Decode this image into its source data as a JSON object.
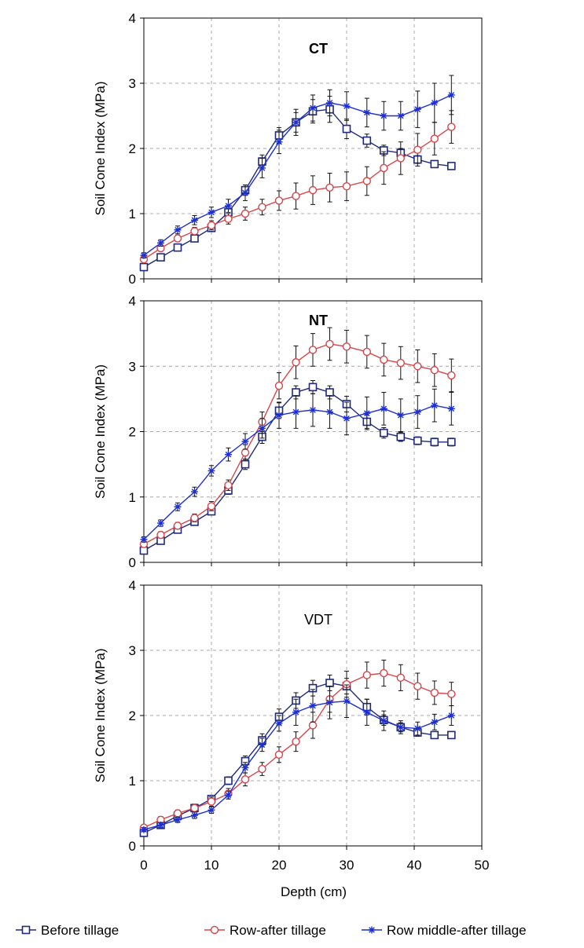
{
  "legend": [
    {
      "series_index": 0,
      "label": "Before tillage",
      "marker": "square",
      "color": "#1f2a7a"
    },
    {
      "series_index": 1,
      "label": "Row-after tillage",
      "marker": "circle",
      "color": "#d9454a"
    },
    {
      "series_index": 2,
      "label": "Row middle-after tillage",
      "marker": "star",
      "color": "#1e2fd0"
    }
  ],
  "xlabel": "Depth (cm)",
  "chart_data": [
    {
      "type": "line",
      "title": "CT",
      "xlabel": "",
      "ylabel": "Soil Cone Index (MPa)",
      "xlim": [
        0,
        50
      ],
      "ylim": [
        0,
        4
      ],
      "xticks": [
        0,
        10,
        20,
        30,
        40,
        50
      ],
      "yticks": [
        0,
        1,
        2,
        3,
        4
      ],
      "grid": true,
      "x": [
        0,
        2.5,
        5,
        7.5,
        10,
        12.5,
        15,
        17.5,
        20,
        22.5,
        25,
        27.5,
        30,
        33,
        35.5,
        38,
        40.5,
        43,
        45.5
      ],
      "series": [
        {
          "name": "Before tillage",
          "values": [
            0.18,
            0.33,
            0.48,
            0.62,
            0.78,
            1.02,
            1.36,
            1.8,
            2.2,
            2.4,
            2.57,
            2.6,
            2.3,
            2.12,
            1.97,
            1.93,
            1.83,
            1.76,
            1.73
          ],
          "errors": [
            0.03,
            0.04,
            0.04,
            0.05,
            0.05,
            0.06,
            0.08,
            0.1,
            0.12,
            0.15,
            0.18,
            0.2,
            0.15,
            0.1,
            0.08,
            0.07,
            0.06,
            0.05,
            0.04
          ]
        },
        {
          "name": "Row-after tillage",
          "values": [
            0.3,
            0.47,
            0.62,
            0.73,
            0.82,
            0.92,
            1.0,
            1.1,
            1.2,
            1.27,
            1.36,
            1.4,
            1.42,
            1.5,
            1.7,
            1.85,
            1.98,
            2.15,
            2.33
          ],
          "errors": [
            0.04,
            0.05,
            0.05,
            0.06,
            0.07,
            0.08,
            0.1,
            0.12,
            0.15,
            0.2,
            0.22,
            0.22,
            0.22,
            0.22,
            0.25,
            0.25,
            0.25,
            0.25,
            0.25
          ]
        },
        {
          "name": "Row middle-after tillage",
          "values": [
            0.36,
            0.55,
            0.75,
            0.9,
            1.02,
            1.12,
            1.32,
            1.7,
            2.1,
            2.4,
            2.62,
            2.7,
            2.65,
            2.55,
            2.5,
            2.5,
            2.6,
            2.7,
            2.82
          ],
          "errors": [
            0.04,
            0.05,
            0.06,
            0.07,
            0.08,
            0.1,
            0.12,
            0.15,
            0.18,
            0.2,
            0.2,
            0.2,
            0.22,
            0.22,
            0.22,
            0.22,
            0.28,
            0.3,
            0.3
          ]
        }
      ]
    },
    {
      "type": "line",
      "title": "NT",
      "xlabel": "",
      "ylabel": "Soil Cone Index (MPa)",
      "xlim": [
        0,
        50
      ],
      "ylim": [
        0,
        4
      ],
      "xticks": [
        0,
        10,
        20,
        30,
        40,
        50
      ],
      "yticks": [
        0,
        1,
        2,
        3,
        4
      ],
      "grid": true,
      "x": [
        0,
        2.5,
        5,
        7.5,
        10,
        12.5,
        15,
        17.5,
        20,
        22.5,
        25,
        27.5,
        30,
        33,
        35.5,
        38,
        40.5,
        43,
        45.5
      ],
      "series": [
        {
          "name": "Before tillage",
          "values": [
            0.18,
            0.33,
            0.5,
            0.62,
            0.78,
            1.1,
            1.5,
            1.92,
            2.32,
            2.6,
            2.68,
            2.6,
            2.42,
            2.15,
            1.98,
            1.92,
            1.86,
            1.84,
            1.84
          ],
          "errors": [
            0.03,
            0.04,
            0.04,
            0.05,
            0.05,
            0.06,
            0.08,
            0.1,
            0.12,
            0.1,
            0.1,
            0.1,
            0.12,
            0.1,
            0.08,
            0.07,
            0.06,
            0.06,
            0.06
          ]
        },
        {
          "name": "Row-after tillage",
          "values": [
            0.28,
            0.42,
            0.56,
            0.68,
            0.86,
            1.18,
            1.68,
            2.15,
            2.7,
            3.06,
            3.25,
            3.34,
            3.3,
            3.22,
            3.1,
            3.05,
            3.0,
            2.94,
            2.86
          ],
          "errors": [
            0.04,
            0.05,
            0.05,
            0.06,
            0.07,
            0.08,
            0.12,
            0.15,
            0.2,
            0.25,
            0.25,
            0.25,
            0.25,
            0.25,
            0.25,
            0.25,
            0.25,
            0.25,
            0.25
          ]
        },
        {
          "name": "Row middle-after tillage",
          "values": [
            0.35,
            0.6,
            0.85,
            1.08,
            1.4,
            1.65,
            1.85,
            2.05,
            2.25,
            2.3,
            2.33,
            2.3,
            2.2,
            2.28,
            2.35,
            2.25,
            2.3,
            2.4,
            2.35
          ],
          "errors": [
            0.04,
            0.05,
            0.06,
            0.07,
            0.08,
            0.1,
            0.12,
            0.15,
            0.2,
            0.25,
            0.25,
            0.25,
            0.25,
            0.25,
            0.25,
            0.25,
            0.25,
            0.25,
            0.25
          ]
        }
      ]
    },
    {
      "type": "line",
      "title": "VDT",
      "xlabel": "Depth (cm)",
      "ylabel": "Soil Cone Index (MPa)",
      "xlim": [
        0,
        50
      ],
      "ylim": [
        0,
        4
      ],
      "xticks": [
        0,
        10,
        20,
        30,
        40,
        50
      ],
      "yticks": [
        0,
        1,
        2,
        3,
        4
      ],
      "grid": true,
      "x": [
        0,
        2.5,
        5,
        7.5,
        10,
        12.5,
        15,
        17.5,
        20,
        22.5,
        25,
        27.5,
        30,
        33,
        35.5,
        38,
        40.5,
        43,
        45.5
      ],
      "series": [
        {
          "name": "Before tillage",
          "values": [
            0.2,
            0.32,
            0.46,
            0.58,
            0.72,
            1.0,
            1.3,
            1.62,
            1.98,
            2.23,
            2.42,
            2.5,
            2.45,
            2.13,
            1.93,
            1.82,
            1.74,
            1.7,
            1.7
          ],
          "errors": [
            0.03,
            0.04,
            0.04,
            0.05,
            0.05,
            0.06,
            0.08,
            0.1,
            0.12,
            0.12,
            0.12,
            0.12,
            0.12,
            0.12,
            0.08,
            0.07,
            0.06,
            0.05,
            0.05
          ]
        },
        {
          "name": "Row-after tillage",
          "values": [
            0.28,
            0.4,
            0.5,
            0.58,
            0.68,
            0.8,
            1.02,
            1.18,
            1.4,
            1.6,
            1.85,
            2.25,
            2.48,
            2.62,
            2.65,
            2.58,
            2.45,
            2.35,
            2.33
          ],
          "errors": [
            0.04,
            0.05,
            0.05,
            0.06,
            0.07,
            0.08,
            0.1,
            0.1,
            0.12,
            0.15,
            0.2,
            0.2,
            0.2,
            0.2,
            0.2,
            0.2,
            0.2,
            0.18,
            0.18
          ]
        },
        {
          "name": "Row middle-after tillage",
          "values": [
            0.25,
            0.32,
            0.4,
            0.47,
            0.55,
            0.78,
            1.2,
            1.55,
            1.88,
            2.05,
            2.15,
            2.2,
            2.22,
            2.05,
            1.92,
            1.82,
            1.8,
            1.9,
            2.0
          ],
          "errors": [
            0.03,
            0.04,
            0.04,
            0.05,
            0.05,
            0.06,
            0.08,
            0.1,
            0.12,
            0.2,
            0.25,
            0.25,
            0.25,
            0.2,
            0.15,
            0.1,
            0.1,
            0.12,
            0.15
          ]
        }
      ]
    }
  ]
}
